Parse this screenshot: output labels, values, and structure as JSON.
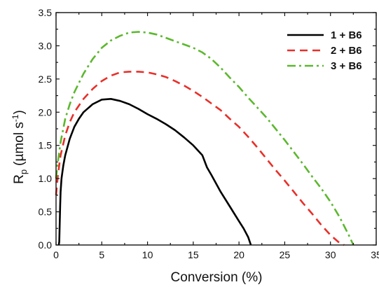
{
  "chart_data": {
    "type": "line",
    "xlabel": "Conversion (%)",
    "ylabel_main": "R",
    "ylabel_sub": "p",
    "ylabel_unit_pre": "(µmol s",
    "ylabel_unit_sup": "-1",
    "ylabel_unit_post": ")",
    "xlim": [
      0,
      35
    ],
    "ylim": [
      0,
      3.5
    ],
    "xticks": [
      0,
      5,
      10,
      15,
      20,
      25,
      30,
      35
    ],
    "yticks": [
      0.0,
      0.5,
      1.0,
      1.5,
      2.0,
      2.5,
      3.0,
      3.5
    ],
    "xtick_labels": [
      "0",
      "5",
      "10",
      "15",
      "20",
      "25",
      "30",
      "35"
    ],
    "ytick_labels": [
      "0.0",
      "0.5",
      "1.0",
      "1.5",
      "2.0",
      "2.5",
      "3.0",
      "3.5"
    ],
    "grid": false,
    "legend_position": "top-right",
    "series": [
      {
        "name_bold": "1",
        "name_rest": " + B6",
        "color": "#000000",
        "dash": "solid",
        "x": [
          0.3,
          0.35,
          0.4,
          0.45,
          0.5,
          0.6,
          0.8,
          1.0,
          1.5,
          2.0,
          2.5,
          3.0,
          4.0,
          5.0,
          6.0,
          7.0,
          8.0,
          9.0,
          10.0,
          11.0,
          12.0,
          13.0,
          14.0,
          15.0,
          16.0,
          16.5,
          17.0,
          18.0,
          19.0,
          20.0,
          20.5,
          21.0,
          21.3
        ],
        "y": [
          0.0,
          0.05,
          0.3,
          0.6,
          0.8,
          1.0,
          1.2,
          1.35,
          1.6,
          1.78,
          1.9,
          2.0,
          2.12,
          2.19,
          2.2,
          2.17,
          2.12,
          2.05,
          1.97,
          1.9,
          1.82,
          1.73,
          1.62,
          1.5,
          1.35,
          1.17,
          1.05,
          0.8,
          0.58,
          0.36,
          0.25,
          0.12,
          0.0
        ]
      },
      {
        "name_bold": "2",
        "name_rest": " + B6",
        "color": "#e8302a",
        "dash": "dashed",
        "x": [
          0.0,
          0.2,
          0.5,
          1.0,
          1.5,
          2.0,
          3.0,
          4.0,
          5.0,
          6.0,
          7.0,
          8.0,
          9.0,
          10.0,
          11.0,
          12.0,
          13.0,
          14.0,
          15.0,
          16.0,
          17.0,
          18.0,
          19.0,
          20.0,
          21.0,
          22.0,
          23.0,
          24.0,
          25.0,
          26.0,
          27.0,
          28.0,
          29.0,
          30.0,
          31.0,
          31.5
        ],
        "y": [
          0.75,
          1.05,
          1.35,
          1.65,
          1.85,
          2.0,
          2.2,
          2.35,
          2.47,
          2.55,
          2.6,
          2.61,
          2.61,
          2.6,
          2.57,
          2.53,
          2.47,
          2.4,
          2.32,
          2.23,
          2.13,
          2.03,
          1.9,
          1.78,
          1.63,
          1.47,
          1.3,
          1.13,
          0.97,
          0.8,
          0.63,
          0.47,
          0.3,
          0.15,
          0.03,
          0.0
        ]
      },
      {
        "name_bold": "3",
        "name_rest": " + B6",
        "color": "#5cb82e",
        "dash": "dashdot",
        "x": [
          0.0,
          0.2,
          0.5,
          1.0,
          1.5,
          2.0,
          3.0,
          4.0,
          5.0,
          6.0,
          7.0,
          8.0,
          9.0,
          10.0,
          11.0,
          12.0,
          13.0,
          14.0,
          15.0,
          16.0,
          17.0,
          18.0,
          19.0,
          20.0,
          21.0,
          22.0,
          23.0,
          24.0,
          25.0,
          26.0,
          27.0,
          28.0,
          29.0,
          30.0,
          31.0,
          32.0,
          32.5
        ],
        "y": [
          1.0,
          1.25,
          1.55,
          1.9,
          2.12,
          2.3,
          2.58,
          2.8,
          2.97,
          3.08,
          3.15,
          3.2,
          3.21,
          3.2,
          3.17,
          3.12,
          3.07,
          3.02,
          2.97,
          2.9,
          2.8,
          2.67,
          2.52,
          2.38,
          2.22,
          2.07,
          1.92,
          1.75,
          1.58,
          1.4,
          1.22,
          1.03,
          0.85,
          0.65,
          0.42,
          0.15,
          0.0
        ]
      }
    ]
  }
}
